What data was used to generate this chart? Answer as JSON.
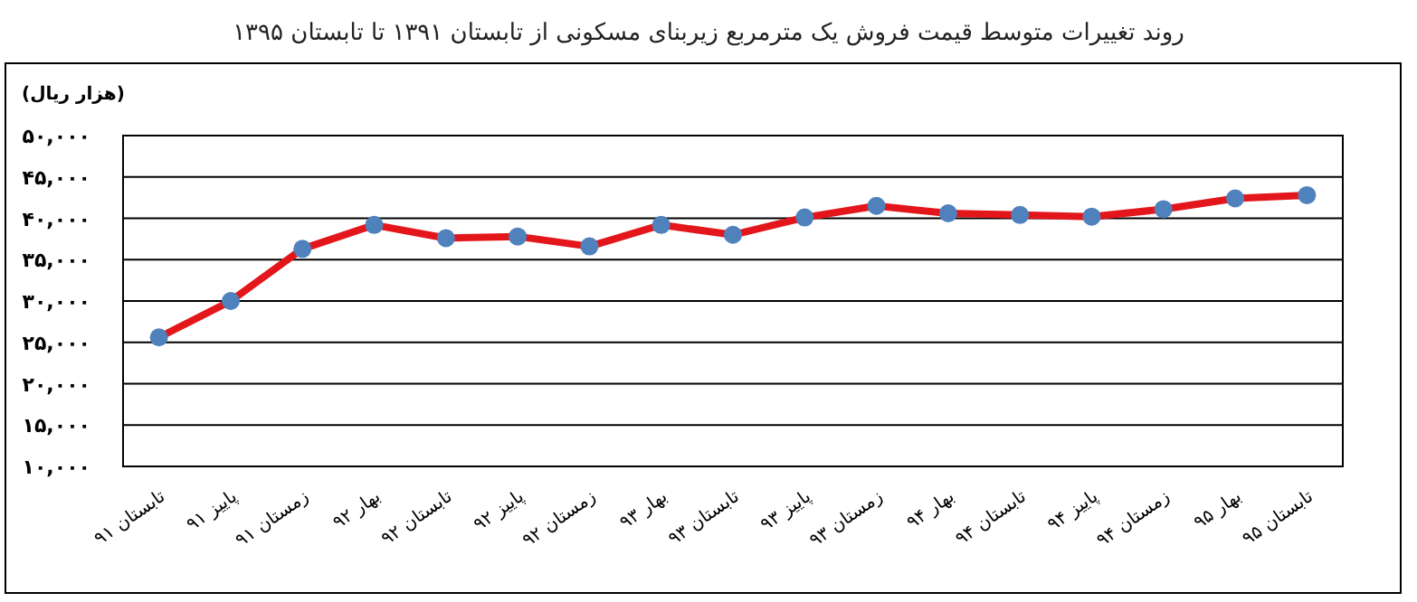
{
  "chart_data": {
    "type": "line",
    "title": "روند تغییرات متوسط قیمت فروش یک مترمربع زیربنای مسکونی از تابستان ۱۳۹۱ تا تابستان ۱۳۹۵",
    "ylabel": "(هزار ریال)",
    "categories": [
      "تابستان ۹۱",
      "پاییز ۹۱",
      "زمستان ۹۱",
      "بهار ۹۲",
      "تابستان ۹۲",
      "پاییز ۹۲",
      "زمستان ۹۲",
      "بهار ۹۳",
      "تابستان ۹۳",
      "پاییز ۹۳",
      "زمستان ۹۳",
      "بهار ۹۴",
      "تابستان ۹۴",
      "پاییز ۹۴",
      "زمستان ۹۴",
      "بهار ۹۵",
      "تابستان ۹۵"
    ],
    "series": [
      {
        "color": "#e3161b",
        "values": [
          25600,
          30000,
          36300,
          39200,
          37600,
          37800,
          36600,
          39200,
          38000,
          40100,
          41500,
          40600,
          40400,
          40200,
          41100,
          42400,
          42800
        ]
      }
    ],
    "ylim": [
      10000,
      50000
    ],
    "yticks": [
      {
        "value": 10000,
        "label": "۱۰,۰۰۰"
      },
      {
        "value": 15000,
        "label": "۱۵,۰۰۰"
      },
      {
        "value": 20000,
        "label": "۲۰,۰۰۰"
      },
      {
        "value": 25000,
        "label": "۲۵,۰۰۰"
      },
      {
        "value": 30000,
        "label": "۳۰,۰۰۰"
      },
      {
        "value": 35000,
        "label": "۳۵,۰۰۰"
      },
      {
        "value": 40000,
        "label": "۴۰,۰۰۰"
      },
      {
        "value": 45000,
        "label": "۴۵,۰۰۰"
      },
      {
        "value": 50000,
        "label": "۵۰,۰۰۰"
      }
    ],
    "grid": "y",
    "marker": "circle",
    "line_style": "solid"
  }
}
